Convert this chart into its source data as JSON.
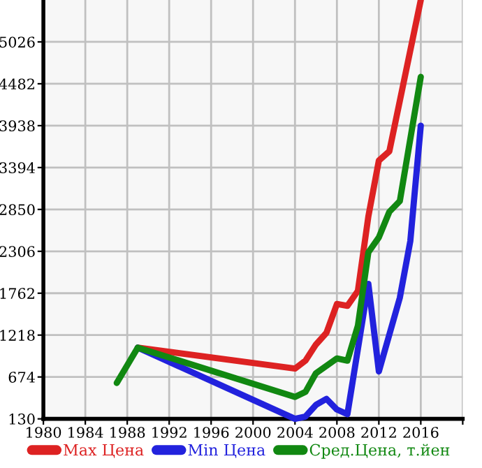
{
  "chart_data": {
    "type": "line",
    "xlim": [
      1980,
      2020
    ],
    "ylim": [
      130,
      5570
    ],
    "xticks": [
      1980,
      1984,
      1988,
      1992,
      1996,
      2000,
      2004,
      2008,
      2012,
      2016,
      {
        "value": 2020,
        "label": null
      }
    ],
    "yticks": [
      130,
      674,
      1218,
      1762,
      2306,
      2850,
      3394,
      3938,
      4482,
      5026
    ],
    "grid": true,
    "legend": "bottom",
    "marker": "none",
    "line_style": "solid",
    "series": [
      {
        "name": "Max Цена",
        "color": "#dd2222",
        "x": [
          1989,
          2004,
          2005,
          2006,
          2007,
          2008,
          2009,
          2010,
          2011,
          2012,
          2013,
          2016
        ],
        "values": [
          1055,
          783,
          886,
          1096,
          1248,
          1622,
          1598,
          1792,
          2760,
          3484,
          3605,
          5570
        ]
      },
      {
        "name": "Min Цена",
        "color": "#2222dd",
        "x": [
          1989,
          2004,
          2005,
          2006,
          2007,
          2008,
          2009,
          2011,
          2012,
          2014,
          2015,
          2016
        ],
        "values": [
          1055,
          130,
          160,
          311,
          390,
          251,
          190,
          1883,
          746,
          1702,
          2438,
          3938
        ]
      },
      {
        "name": "Сред.Цена, т.йен",
        "color": "#118811",
        "x": [
          1987,
          1989,
          2004,
          2005,
          2006,
          2008,
          2009,
          2010,
          2011,
          2012,
          2013,
          2014,
          2016
        ],
        "values": [
          596,
          1055,
          415,
          480,
          723,
          915,
          886,
          1339,
          2293,
          2487,
          2819,
          2958,
          4572
        ]
      }
    ]
  }
}
